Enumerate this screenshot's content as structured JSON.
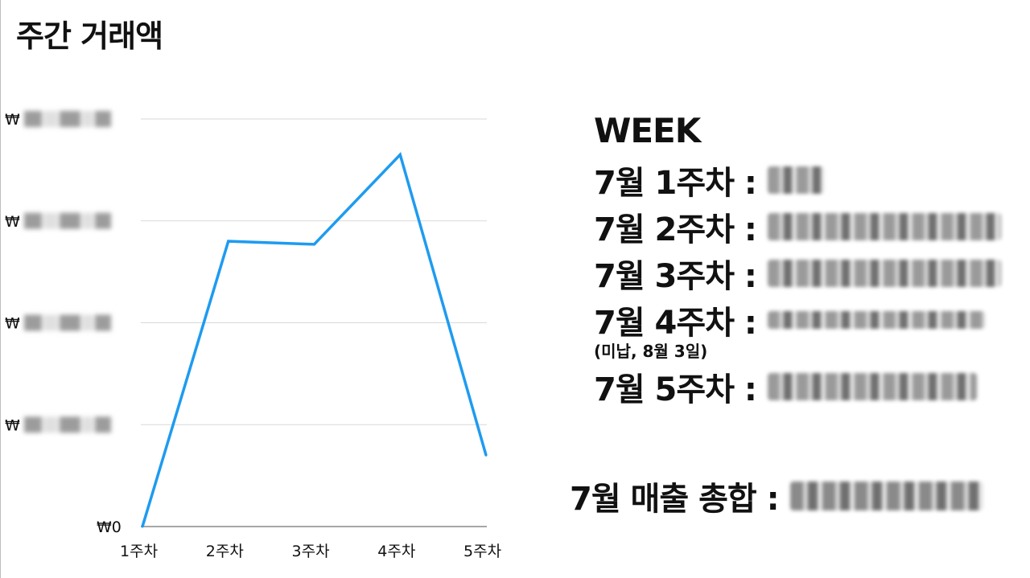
{
  "title": "주간 거래액",
  "chart_data": {
    "type": "line",
    "categories": [
      "1주차",
      "2주차",
      "3주차",
      "4주차",
      "5주차"
    ],
    "values": [
      0,
      2.8,
      2.77,
      3.65,
      0.7
    ],
    "ylim": [
      0,
      4
    ],
    "y_ticks": [
      "₩0",
      "₩",
      "₩",
      "₩",
      "₩"
    ],
    "grid": true,
    "line_color": "#1e9bf0"
  },
  "summary": {
    "heading": "WEEK",
    "rows": [
      {
        "label": "7월 1주차 :"
      },
      {
        "label": "7월 2주차 :"
      },
      {
        "label": "7월 3주차 :"
      },
      {
        "label": "7월 4주차 :",
        "note": "(미납, 8월 3일)"
      },
      {
        "label": "7월 5주차 :"
      }
    ],
    "total_label": "7월 매출 총합 :"
  }
}
